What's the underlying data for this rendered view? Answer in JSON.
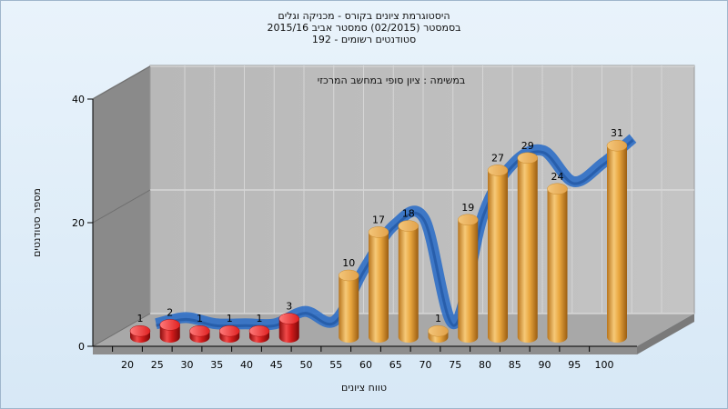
{
  "chart_data": {
    "type": "bar",
    "title_lines": [
      "היסטוגרמת ציונים בקורס - מכניקה וגלים",
      "בסמסטר  (02/2015)  סמסטר אביב 2015/16",
      "סטודנטים רשומים - 192"
    ],
    "subtitle": "במשימה : ציון סופי במחשב המרכזי",
    "xlabel": "טווח ציונים",
    "ylabel": "מספר סטודנטים",
    "ylim": [
      0,
      40
    ],
    "yticks": [
      0,
      20,
      40
    ],
    "categories": [
      "20",
      "25",
      "30",
      "35",
      "40",
      "45",
      "50",
      "55",
      "60",
      "65",
      "70",
      "75",
      "80",
      "85",
      "90",
      "95",
      "100"
    ],
    "values": [
      1,
      2,
      1,
      1,
      1,
      3,
      null,
      10,
      17,
      18,
      1,
      19,
      27,
      29,
      24,
      null,
      31
    ],
    "colors": {
      "fail": "#d81a1a",
      "pass": "#e8a63a",
      "curve": "#2f6fc7"
    },
    "fail_threshold": 55,
    "legend": "none",
    "grid": true
  }
}
